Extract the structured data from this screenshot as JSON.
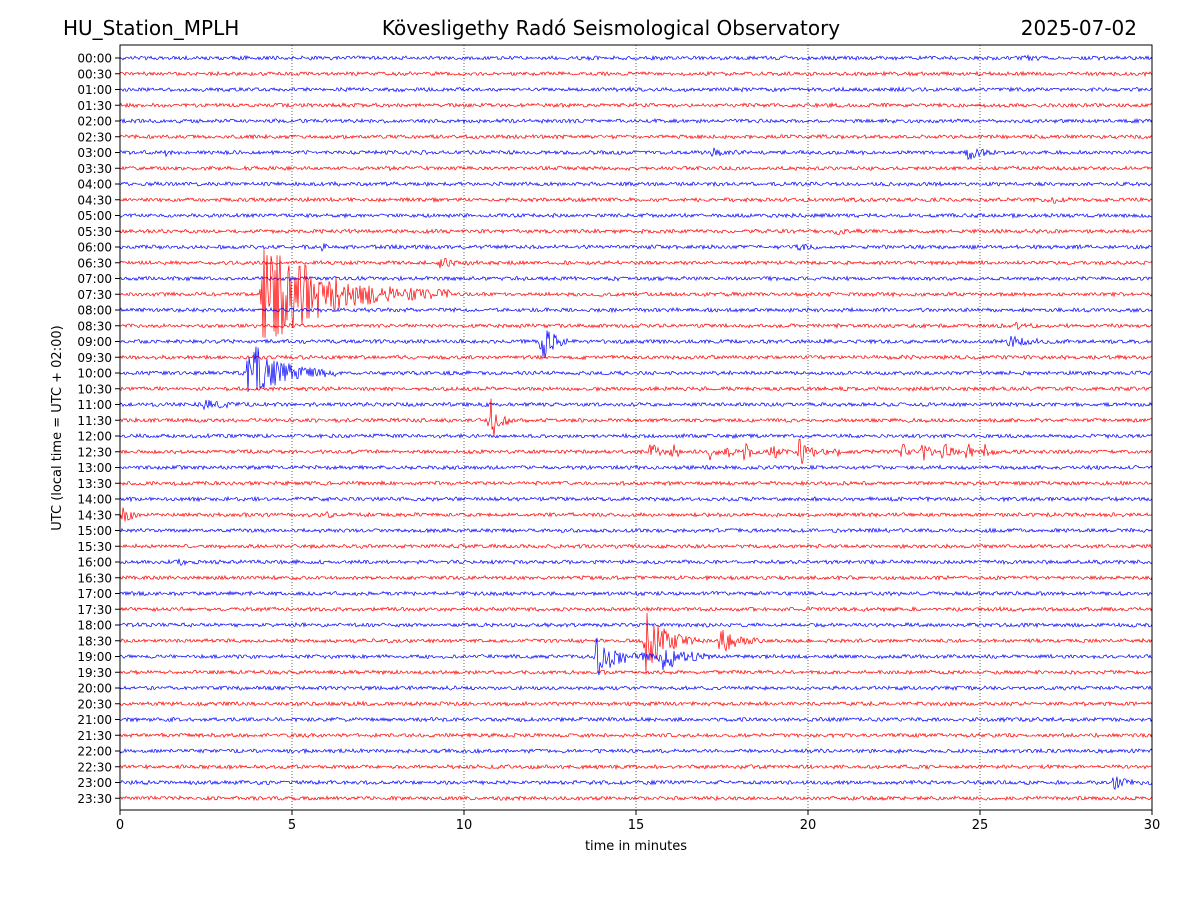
{
  "chart_data": {
    "type": "line",
    "title_left": "HU_Station_MPLH",
    "title_center": "Kövesligethy Radó Seismological Observatory",
    "title_right": "2025-07-02",
    "xlabel": "time in minutes",
    "ylabel": "UTC (local time = UTC + 02:00)",
    "xlim": [
      0,
      30
    ],
    "x_ticks": [
      0,
      5,
      10,
      15,
      20,
      25,
      30
    ],
    "x_tick_labels": [
      "0",
      "5",
      "10",
      "15",
      "20",
      "25",
      "30"
    ],
    "grid": "vertical dotted at x ticks",
    "row_labels": [
      "00:00",
      "00:30",
      "01:00",
      "01:30",
      "02:00",
      "02:30",
      "03:00",
      "03:30",
      "04:00",
      "04:30",
      "05:00",
      "05:30",
      "06:00",
      "06:30",
      "07:00",
      "07:30",
      "08:00",
      "08:30",
      "09:00",
      "09:30",
      "10:00",
      "10:30",
      "11:00",
      "11:30",
      "12:00",
      "12:30",
      "13:00",
      "13:30",
      "14:00",
      "14:30",
      "15:00",
      "15:30",
      "16:00",
      "16:30",
      "17:00",
      "17:30",
      "18:00",
      "18:30",
      "19:00",
      "19:30",
      "20:00",
      "20:30",
      "21:00",
      "21:30",
      "22:00",
      "22:30",
      "23:00",
      "23:30"
    ],
    "trace_colors": [
      "#0000ff",
      "#ff0000"
    ],
    "events": [
      {
        "row": 0,
        "start": 26.3,
        "duration": 0.6,
        "amp": 0.25
      },
      {
        "row": 6,
        "start": 1.3,
        "duration": 0.4,
        "amp": 0.2
      },
      {
        "row": 6,
        "start": 17.2,
        "duration": 1.0,
        "amp": 0.25
      },
      {
        "row": 6,
        "start": 24.6,
        "duration": 0.9,
        "amp": 0.55
      },
      {
        "row": 9,
        "start": 27.0,
        "duration": 0.8,
        "amp": 0.25
      },
      {
        "row": 11,
        "start": 20.8,
        "duration": 0.8,
        "amp": 0.2
      },
      {
        "row": 12,
        "start": 5.8,
        "duration": 0.6,
        "amp": 0.3
      },
      {
        "row": 12,
        "start": 19.7,
        "duration": 0.7,
        "amp": 0.2
      },
      {
        "row": 13,
        "start": 9.2,
        "duration": 1.2,
        "amp": 0.45
      },
      {
        "row": 15,
        "start": 4.1,
        "duration": 5.5,
        "amp": 3.8
      },
      {
        "row": 17,
        "start": 26.0,
        "duration": 0.8,
        "amp": 0.2
      },
      {
        "row": 18,
        "start": 12.2,
        "duration": 0.8,
        "amp": 1.9
      },
      {
        "row": 18,
        "start": 25.8,
        "duration": 1.8,
        "amp": 0.35
      },
      {
        "row": 20,
        "start": 3.7,
        "duration": 2.6,
        "amp": 2.2
      },
      {
        "row": 22,
        "start": 2.4,
        "duration": 1.6,
        "amp": 0.3
      },
      {
        "row": 23,
        "start": 10.7,
        "duration": 0.7,
        "amp": 2.0
      },
      {
        "row": 25,
        "start": 15.4,
        "duration": 0.5,
        "amp": 0.9
      },
      {
        "row": 25,
        "start": 16.0,
        "duration": 0.5,
        "amp": 0.8
      },
      {
        "row": 25,
        "start": 17.1,
        "duration": 0.4,
        "amp": 0.8
      },
      {
        "row": 25,
        "start": 17.6,
        "duration": 0.4,
        "amp": 0.8
      },
      {
        "row": 25,
        "start": 18.1,
        "duration": 0.5,
        "amp": 0.9
      },
      {
        "row": 25,
        "start": 18.9,
        "duration": 0.5,
        "amp": 0.9
      },
      {
        "row": 25,
        "start": 19.7,
        "duration": 0.9,
        "amp": 1.1
      },
      {
        "row": 25,
        "start": 20.8,
        "duration": 0.3,
        "amp": 0.5
      },
      {
        "row": 25,
        "start": 22.7,
        "duration": 0.4,
        "amp": 0.8
      },
      {
        "row": 25,
        "start": 23.3,
        "duration": 0.5,
        "amp": 0.9
      },
      {
        "row": 25,
        "start": 23.9,
        "duration": 0.5,
        "amp": 0.9
      },
      {
        "row": 25,
        "start": 24.6,
        "duration": 0.4,
        "amp": 0.8
      },
      {
        "row": 25,
        "start": 25.1,
        "duration": 0.4,
        "amp": 0.8
      },
      {
        "row": 29,
        "start": 0.0,
        "duration": 0.6,
        "amp": 1.1
      },
      {
        "row": 29,
        "start": 6.0,
        "duration": 0.4,
        "amp": 0.3
      },
      {
        "row": 32,
        "start": 1.7,
        "duration": 0.6,
        "amp": 0.2
      },
      {
        "row": 37,
        "start": 15.2,
        "duration": 1.6,
        "amp": 2.5
      },
      {
        "row": 37,
        "start": 17.4,
        "duration": 1.3,
        "amp": 0.9
      },
      {
        "row": 38,
        "start": 13.8,
        "duration": 2.0,
        "amp": 1.3
      },
      {
        "row": 38,
        "start": 15.7,
        "duration": 1.8,
        "amp": 1.0
      },
      {
        "row": 46,
        "start": 28.8,
        "duration": 1.2,
        "amp": 0.55
      }
    ]
  }
}
